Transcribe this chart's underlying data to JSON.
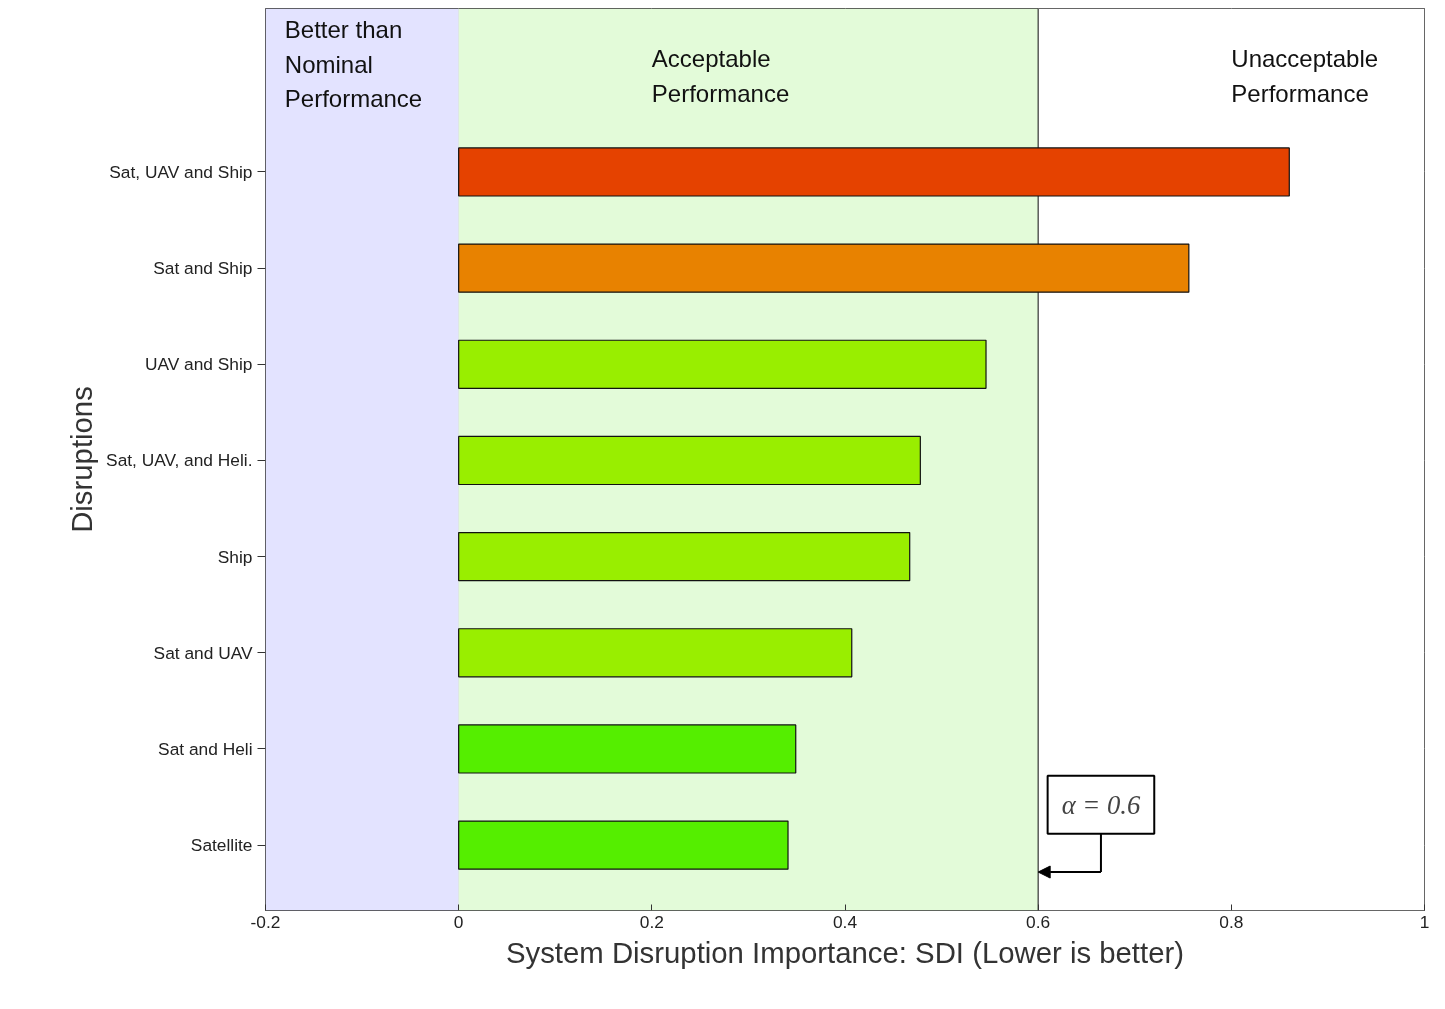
{
  "chart_data": {
    "type": "bar",
    "orientation": "horizontal",
    "categories": [
      "Sat, UAV and Ship",
      "Sat and Ship",
      "UAV and Ship",
      "Sat, UAV, and Heli.",
      "Ship",
      "Sat and UAV",
      "Sat and Heli",
      "Satellite"
    ],
    "values": [
      0.86,
      0.756,
      0.546,
      0.478,
      0.467,
      0.407,
      0.349,
      0.341
    ],
    "colors": [
      "#e54200",
      "#e88200",
      "#99ee00",
      "#99ee00",
      "#99ee00",
      "#99ee00",
      "#55ee00",
      "#55ee00"
    ],
    "xlabel": "System Disruption Importance: SDI (Lower is better)",
    "ylabel": "Disruptions",
    "xlim": [
      -0.2,
      1
    ],
    "xticks": [
      -0.2,
      0,
      0.2,
      0.4,
      0.6,
      0.8,
      1
    ],
    "grid": true,
    "bands": [
      {
        "axis": "x",
        "from": -0.2,
        "to": 0,
        "label": "Better than\nNominal\nPerformance",
        "color": "#e3e3ff"
      },
      {
        "axis": "x",
        "from": 0,
        "to": 0.6,
        "label": "Acceptable\nPerformance",
        "color": "#e3fbd9"
      },
      {
        "axis": "x",
        "from": 0.6,
        "to": 1,
        "label": "Unacceptable\nPerformance",
        "color": "#ffffff"
      }
    ],
    "ref_lines": [
      {
        "axis": "x",
        "value": 0.6,
        "label": "α = 0.6",
        "color": "#333333"
      }
    ]
  }
}
